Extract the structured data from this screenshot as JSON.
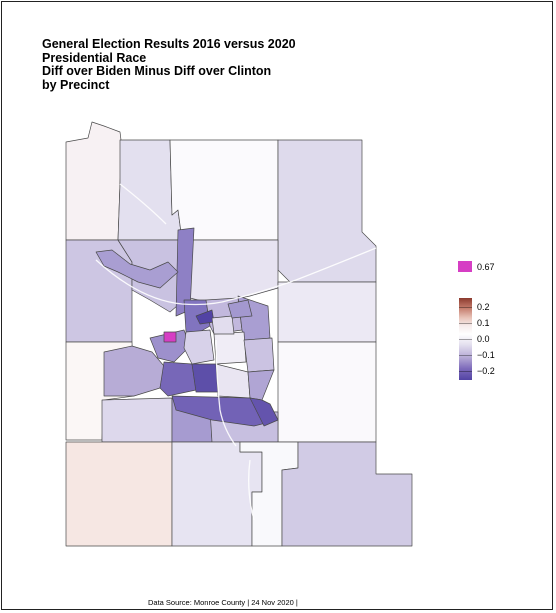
{
  "title_lines": [
    "General Election Results 2016 versus 2020",
    "Presidential Race",
    "Diff over Biden Minus Diff over Clinton",
    "by Precinct"
  ],
  "legend": {
    "special_label": "0.67",
    "special_color": "#d63ec4",
    "ticks": [
      "0.2",
      "0.1",
      "0.0",
      "−0.1",
      "−0.2"
    ],
    "scale_colors": {
      "high": "#8b3a2e",
      "zero": "#ffffff",
      "low": "#5243a4"
    }
  },
  "source": "Data Source: Monroe County | 24 Nov 2020 |"
}
